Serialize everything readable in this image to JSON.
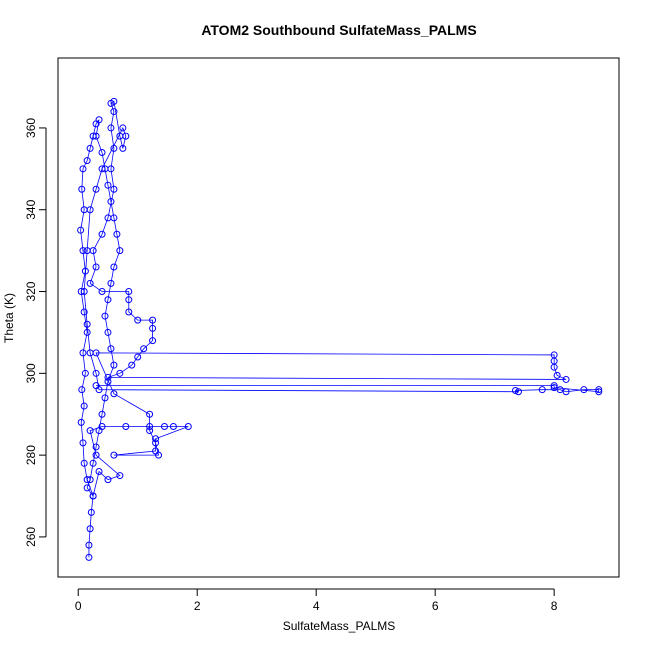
{
  "chart_data": {
    "type": "scatter",
    "title": "ATOM2 Southbound SulfateMass_PALMS",
    "x_label": "SulfateMass_PALMS",
    "y_label": "Theta (K)",
    "color": "#0000ff",
    "line": true,
    "x": [
      0.18,
      0.18,
      0.2,
      0.22,
      0.25,
      0.15,
      0.1,
      0.08,
      0.05,
      0.1,
      0.06,
      0.12,
      0.08,
      0.15,
      0.1,
      0.05,
      0.12,
      0.08,
      0.04,
      0.1,
      0.06,
      0.08,
      0.15,
      0.2,
      0.25,
      0.3,
      0.35,
      0.3,
      0.4,
      0.45,
      0.5,
      0.55,
      0.6,
      0.65,
      0.7,
      0.6,
      0.55,
      0.5,
      0.45,
      0.5,
      0.55,
      0.6,
      0.5,
      0.45,
      0.4,
      0.35,
      0.3,
      0.25,
      0.2,
      0.15,
      0.25,
      0.35,
      0.5,
      0.7,
      0.3,
      0.2,
      0.4,
      0.8,
      1.2,
      1.45,
      1.6,
      1.85,
      1.3,
      1.3,
      0.6,
      1.35,
      1.3,
      1.2,
      1.2,
      0.6,
      0.3,
      8.0,
      8.0,
      8.0,
      8.05,
      8.2,
      0.5,
      0.7,
      0.9,
      1.0,
      1.1,
      1.25,
      1.25,
      1.25,
      1.0,
      0.85,
      0.85,
      0.85,
      0.4,
      0.2,
      0.3,
      0.25,
      0.4,
      0.5,
      0.6,
      0.55,
      0.6,
      0.55,
      0.6,
      0.55,
      0.6,
      0.7,
      0.75,
      0.8,
      0.75,
      0.4,
      0.3,
      0.2,
      0.15,
      0.1,
      0.15,
      0.2,
      0.3,
      0.35,
      7.4,
      7.35,
      7.8,
      8.1,
      8.2,
      8.5,
      8.75,
      8.75,
      8.0,
      8.0,
      0.3
    ],
    "values": [
      255,
      258,
      262,
      266,
      270,
      274,
      278,
      283,
      288,
      292,
      296,
      300,
      305,
      310,
      315,
      320,
      325,
      330,
      335,
      340,
      345,
      350,
      352,
      355,
      358,
      361,
      362,
      358,
      354,
      350,
      346,
      342,
      338,
      334,
      330,
      326,
      322,
      318,
      314,
      310,
      306,
      302,
      298,
      294,
      290,
      286,
      282,
      278,
      274,
      272,
      270,
      276,
      274,
      275,
      280,
      286,
      287,
      287,
      287,
      287,
      287,
      287,
      284,
      281,
      280,
      280,
      283,
      286,
      290,
      295,
      305,
      304.5,
      303,
      301.5,
      299.5,
      298.5,
      299,
      300,
      302,
      304,
      306,
      308,
      311,
      313,
      313,
      315,
      318,
      320,
      320,
      322,
      326,
      330,
      334,
      338,
      345,
      350,
      355,
      360,
      364,
      366,
      366.5,
      358,
      355,
      358,
      360,
      350,
      345,
      340,
      330,
      320,
      312,
      305,
      300,
      296,
      295.5,
      295.8,
      296,
      296,
      295.5,
      296,
      296,
      295.5,
      296.5,
      297,
      297
    ],
    "xlim": [
      -0.34,
      9.09
    ],
    "ylim": [
      250.2,
      377.1
    ],
    "xticks": [
      0,
      2,
      4,
      6,
      8
    ],
    "yticks": [
      260,
      280,
      300,
      320,
      340,
      360
    ]
  }
}
